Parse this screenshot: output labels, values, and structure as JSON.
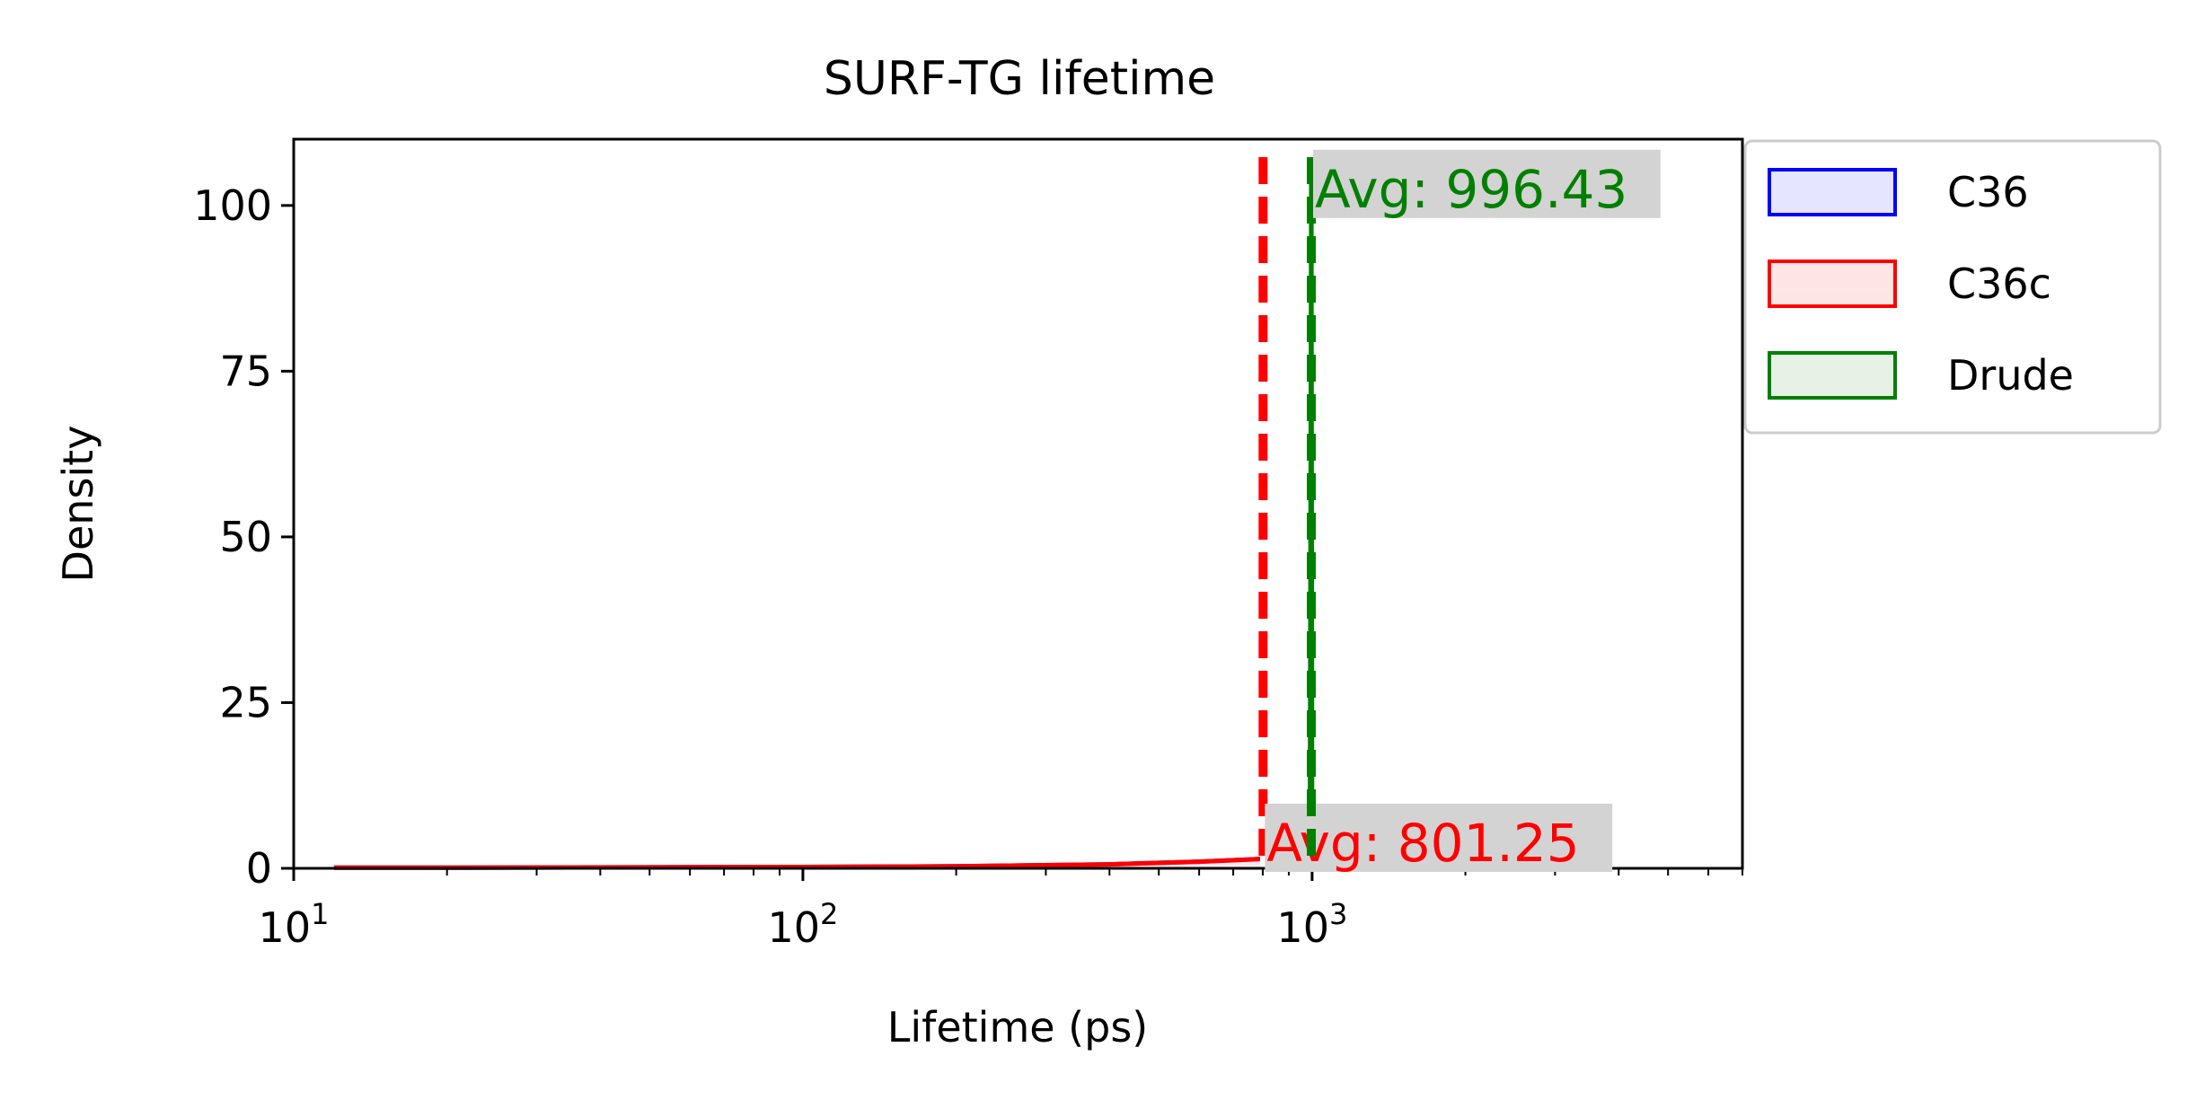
{
  "chart_data": {
    "type": "area",
    "title": "SURF-TG lifetime",
    "xlabel": "Lifetime (ps)",
    "ylabel": "Density",
    "xscale": "log",
    "xlim": [
      10,
      7000
    ],
    "ylim": [
      0,
      110
    ],
    "grid": false,
    "legend_position": "upper-right outside axes",
    "yticks": [
      0,
      25,
      50,
      75,
      100
    ],
    "ytick_labels": [
      "0",
      "25",
      "50",
      "75",
      "100"
    ],
    "xticks": [
      10,
      100,
      1000
    ],
    "xtick_labels": [
      {
        "base": "10",
        "exp": "1"
      },
      {
        "base": "10",
        "exp": "2"
      },
      {
        "base": "10",
        "exp": "3"
      }
    ],
    "series": [
      {
        "name": "C36",
        "color": "#0000ff",
        "fill": "#e5e5ff",
        "x": [
          12,
          20,
          50,
          100,
          200,
          400,
          600,
          790
        ],
        "y": [
          0.1,
          0.1,
          0.15,
          0.2,
          0.3,
          0.6,
          1.0,
          1.4
        ]
      },
      {
        "name": "C36c",
        "color": "#ff0000",
        "fill": "#ffe5e5",
        "x": [
          12,
          20,
          50,
          100,
          200,
          400,
          600,
          790
        ],
        "y": [
          0.1,
          0.1,
          0.15,
          0.2,
          0.3,
          0.6,
          1.0,
          1.4
        ]
      },
      {
        "name": "Drude",
        "color": "#008000",
        "fill": "#e5f2e5",
        "x": [
          990,
          996.4,
          1000
        ],
        "y": [
          0,
          107,
          0
        ]
      }
    ],
    "annotations": [
      {
        "text": "Avg: 801.25",
        "x": 801.25,
        "y": 0,
        "color": "#ff0000",
        "line_style": "dashed",
        "label_box": "#d3d3d3"
      },
      {
        "text": "Avg: 996.43",
        "x": 996.43,
        "y": 100,
        "color": "#008000",
        "line_style": "dashed",
        "label_box": "#d3d3d3"
      }
    ]
  }
}
